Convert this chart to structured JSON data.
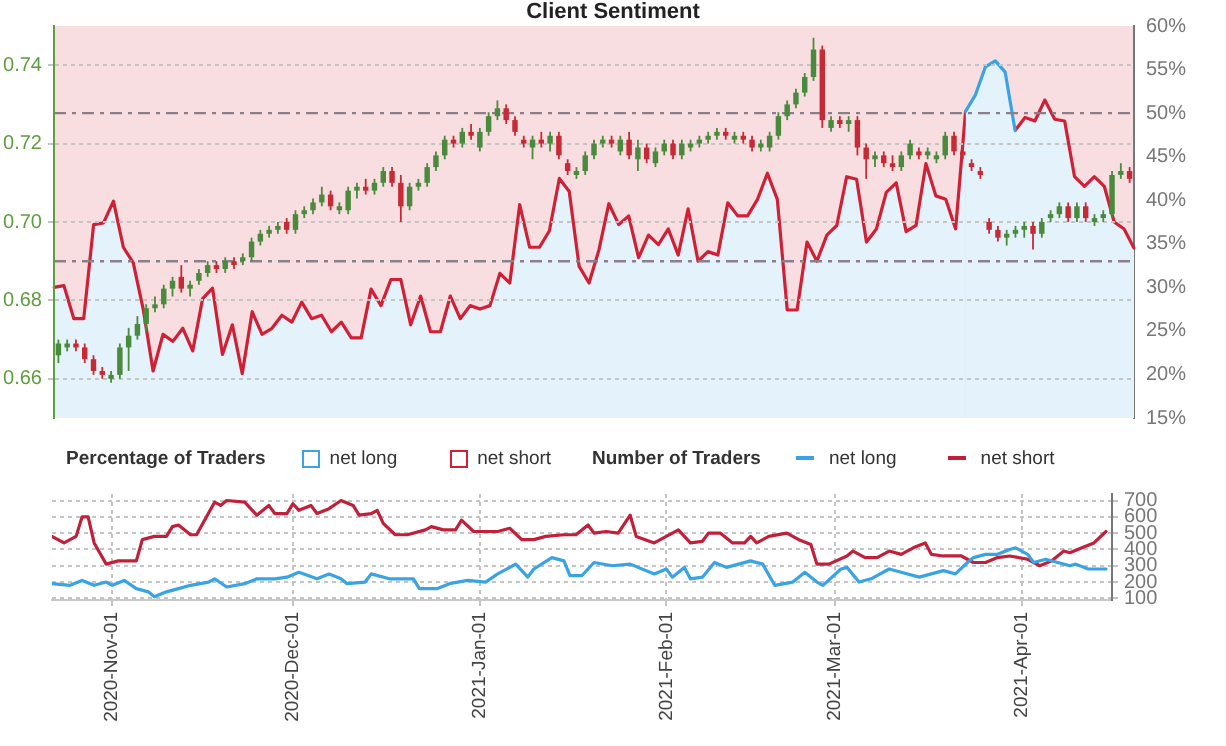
{
  "chart_data": [
    {
      "type": "candlestick",
      "title": "Client Sentiment",
      "grid": "y",
      "tick_labels": "y",
      "ylim": [
        0.65,
        0.75
      ],
      "yticks": [
        0.66,
        0.68,
        {
          "value": 0.7,
          "label": "0.70"
        },
        0.72,
        0.74
      ],
      "categories": [
        null,
        null,
        null,
        null,
        null,
        null,
        null,
        null,
        null,
        null,
        null,
        null,
        null,
        null,
        null,
        null,
        null,
        null,
        null,
        null,
        null,
        null,
        null,
        null,
        null,
        null,
        null,
        null,
        null,
        null,
        null,
        null,
        null,
        null,
        null,
        null,
        null,
        null,
        null,
        null,
        null,
        null,
        null,
        null,
        null,
        null,
        null,
        null,
        null,
        null,
        null,
        null,
        null,
        null,
        null,
        null,
        null,
        null,
        null,
        null,
        null,
        null,
        null,
        null,
        null,
        null,
        null,
        null,
        null,
        null,
        null,
        null,
        null,
        null,
        null,
        null,
        null,
        null,
        null,
        null,
        null,
        null,
        null,
        null,
        null,
        null,
        null,
        null,
        null,
        null,
        null,
        null,
        null,
        null,
        null,
        null,
        null,
        null,
        null,
        null,
        null,
        null,
        null,
        null,
        null,
        null,
        null,
        null,
        null,
        null,
        null,
        null,
        null,
        null,
        null,
        null,
        null,
        null,
        null,
        null,
        null,
        null,
        null
      ],
      "ohlc": [
        [
          0.666,
          0.67,
          0.664,
          0.669
        ],
        [
          0.668,
          0.67,
          0.667,
          0.669
        ],
        [
          0.669,
          0.67,
          0.667,
          0.668
        ],
        [
          0.668,
          0.669,
          0.664,
          0.665
        ],
        [
          0.665,
          0.666,
          0.661,
          0.662
        ],
        [
          0.662,
          0.663,
          0.66,
          0.661
        ],
        [
          0.66,
          0.662,
          0.659,
          0.661
        ],
        [
          0.661,
          0.669,
          0.66,
          0.668
        ],
        [
          0.668,
          0.673,
          0.662,
          0.671
        ],
        [
          0.671,
          0.676,
          0.67,
          0.674
        ],
        [
          0.674,
          0.679,
          0.672,
          0.678
        ],
        [
          0.678,
          0.681,
          0.677,
          0.679
        ],
        [
          0.679,
          0.684,
          0.678,
          0.683
        ],
        [
          0.683,
          0.686,
          0.681,
          0.685
        ],
        [
          0.686,
          0.689,
          0.682,
          0.683
        ],
        [
          0.683,
          0.685,
          0.681,
          0.684
        ],
        [
          0.685,
          0.688,
          0.684,
          0.687
        ],
        [
          0.687,
          0.69,
          0.686,
          0.689
        ],
        [
          0.689,
          0.69,
          0.687,
          0.688
        ],
        [
          0.688,
          0.691,
          0.687,
          0.69
        ],
        [
          0.69,
          0.691,
          0.688,
          0.689
        ],
        [
          0.69,
          0.692,
          0.689,
          0.691
        ],
        [
          0.691,
          0.696,
          0.69,
          0.695
        ],
        [
          0.695,
          0.698,
          0.694,
          0.697
        ],
        [
          0.697,
          0.699,
          0.696,
          0.698
        ],
        [
          0.698,
          0.7,
          0.697,
          0.699
        ],
        [
          0.7,
          0.701,
          0.697,
          0.698
        ],
        [
          0.698,
          0.703,
          0.697,
          0.702
        ],
        [
          0.702,
          0.704,
          0.701,
          0.703
        ],
        [
          0.703,
          0.706,
          0.702,
          0.705
        ],
        [
          0.705,
          0.709,
          0.704,
          0.707
        ],
        [
          0.707,
          0.708,
          0.703,
          0.704
        ],
        [
          0.703,
          0.705,
          0.702,
          0.704
        ],
        [
          0.703,
          0.709,
          0.702,
          0.708
        ],
        [
          0.708,
          0.71,
          0.706,
          0.709
        ],
        [
          0.709,
          0.711,
          0.707,
          0.708
        ],
        [
          0.708,
          0.711,
          0.707,
          0.71
        ],
        [
          0.71,
          0.714,
          0.709,
          0.713
        ],
        [
          0.713,
          0.714,
          0.709,
          0.71
        ],
        [
          0.71,
          0.712,
          0.7,
          0.704
        ],
        [
          0.704,
          0.71,
          0.703,
          0.709
        ],
        [
          0.709,
          0.711,
          0.708,
          0.71
        ],
        [
          0.71,
          0.715,
          0.709,
          0.714
        ],
        [
          0.714,
          0.718,
          0.713,
          0.717
        ],
        [
          0.717,
          0.722,
          0.716,
          0.721
        ],
        [
          0.721,
          0.722,
          0.719,
          0.72
        ],
        [
          0.72,
          0.724,
          0.719,
          0.723
        ],
        [
          0.723,
          0.725,
          0.721,
          0.722
        ],
        [
          0.719,
          0.724,
          0.718,
          0.723
        ],
        [
          0.723,
          0.728,
          0.722,
          0.727
        ],
        [
          0.727,
          0.731,
          0.726,
          0.729
        ],
        [
          0.729,
          0.73,
          0.725,
          0.726
        ],
        [
          0.726,
          0.727,
          0.722,
          0.723
        ],
        [
          0.721,
          0.722,
          0.719,
          0.72
        ],
        [
          0.719,
          0.722,
          0.716,
          0.721
        ],
        [
          0.721,
          0.723,
          0.719,
          0.72
        ],
        [
          0.72,
          0.723,
          0.718,
          0.722
        ],
        [
          0.722,
          0.723,
          0.716,
          0.717
        ],
        [
          0.715,
          0.716,
          0.712,
          0.713
        ],
        [
          0.712,
          0.714,
          0.711,
          0.713
        ],
        [
          0.713,
          0.718,
          0.712,
          0.717
        ],
        [
          0.717,
          0.721,
          0.716,
          0.72
        ],
        [
          0.72,
          0.722,
          0.719,
          0.721
        ],
        [
          0.721,
          0.722,
          0.719,
          0.72
        ],
        [
          0.718,
          0.722,
          0.717,
          0.721
        ],
        [
          0.721,
          0.723,
          0.716,
          0.717
        ],
        [
          0.716,
          0.721,
          0.713,
          0.719
        ],
        [
          0.719,
          0.72,
          0.715,
          0.716
        ],
        [
          0.715,
          0.719,
          0.714,
          0.718
        ],
        [
          0.718,
          0.721,
          0.717,
          0.72
        ],
        [
          0.72,
          0.721,
          0.716,
          0.717
        ],
        [
          0.717,
          0.721,
          0.716,
          0.72
        ],
        [
          0.719,
          0.721,
          0.718,
          0.72
        ],
        [
          0.72,
          0.722,
          0.719,
          0.721
        ],
        [
          0.721,
          0.723,
          0.72,
          0.722
        ],
        [
          0.722,
          0.724,
          0.721,
          0.723
        ],
        [
          0.723,
          0.724,
          0.721,
          0.722
        ],
        [
          0.721,
          0.723,
          0.72,
          0.722
        ],
        [
          0.722,
          0.723,
          0.72,
          0.721
        ],
        [
          0.721,
          0.722,
          0.718,
          0.719
        ],
        [
          0.719,
          0.721,
          0.718,
          0.72
        ],
        [
          0.719,
          0.723,
          0.718,
          0.722
        ],
        [
          0.722,
          0.728,
          0.721,
          0.727
        ],
        [
          0.727,
          0.731,
          0.726,
          0.73
        ],
        [
          0.73,
          0.734,
          0.729,
          0.733
        ],
        [
          0.733,
          0.738,
          0.732,
          0.737
        ],
        [
          0.737,
          0.747,
          0.736,
          0.744
        ],
        [
          0.744,
          0.745,
          0.724,
          0.726
        ],
        [
          0.724,
          0.727,
          0.723,
          0.726
        ],
        [
          0.726,
          0.727,
          0.724,
          0.725
        ],
        [
          0.725,
          0.727,
          0.723,
          0.726
        ],
        [
          0.726,
          0.727,
          0.717,
          0.719
        ],
        [
          0.719,
          0.72,
          0.711,
          0.716
        ],
        [
          0.716,
          0.718,
          0.714,
          0.717
        ],
        [
          0.717,
          0.718,
          0.714,
          0.715
        ],
        [
          0.715,
          0.717,
          0.713,
          0.714
        ],
        [
          0.714,
          0.718,
          0.713,
          0.717
        ],
        [
          0.717,
          0.721,
          0.716,
          0.72
        ],
        [
          0.718,
          0.719,
          0.716,
          0.717
        ],
        [
          0.717,
          0.719,
          0.716,
          0.718
        ],
        [
          0.716,
          0.718,
          0.715,
          0.717
        ],
        [
          0.717,
          0.723,
          0.716,
          0.722
        ],
        [
          0.722,
          0.723,
          0.717,
          0.718
        ],
        [
          0.718,
          0.719,
          0.716,
          0.717
        ],
        [
          0.715,
          0.716,
          0.713,
          0.714
        ],
        [
          0.713,
          0.714,
          0.711,
          0.712
        ],
        [
          0.7,
          0.701,
          0.697,
          0.698
        ],
        [
          0.698,
          0.699,
          0.695,
          0.696
        ],
        [
          0.696,
          0.698,
          0.694,
          0.697
        ],
        [
          0.697,
          0.699,
          0.696,
          0.698
        ],
        [
          0.698,
          0.7,
          0.696,
          0.699
        ],
        [
          0.699,
          0.7,
          0.693,
          0.697
        ],
        [
          0.697,
          0.701,
          0.696,
          0.7
        ],
        [
          0.701,
          0.703,
          0.7,
          0.702
        ],
        [
          0.702,
          0.705,
          0.701,
          0.704
        ],
        [
          0.704,
          0.705,
          0.7,
          0.701
        ],
        [
          0.701,
          0.705,
          0.7,
          0.704
        ],
        [
          0.704,
          0.705,
          0.7,
          0.701
        ],
        [
          0.7,
          0.702,
          0.699,
          0.701
        ],
        [
          0.701,
          0.703,
          0.7,
          0.702
        ],
        [
          0.702,
          0.713,
          0.701,
          0.712
        ],
        [
          0.712,
          0.715,
          0.711,
          0.713
        ],
        [
          0.713,
          0.714,
          0.71,
          0.711
        ]
      ],
      "colors": [
        "#4a8a3c",
        "#4a8a3c",
        "#c62a35",
        "#c62a35",
        "#c62a35",
        "#c62a35",
        "#4a8a3c",
        "#4a8a3c",
        "#4a8a3c",
        "#4a8a3c",
        "#4a8a3c",
        "#4a8a3c",
        "#4a8a3c",
        "#4a8a3c",
        "#c62a35",
        "#4a8a3c",
        "#4a8a3c",
        "#4a8a3c",
        "#c62a35",
        "#4a8a3c",
        "#c62a35",
        "#4a8a3c",
        "#4a8a3c",
        "#4a8a3c",
        "#4a8a3c",
        "#4a8a3c",
        "#c62a35",
        "#4a8a3c",
        "#4a8a3c",
        "#4a8a3c",
        "#4a8a3c",
        "#c62a35",
        "#4a8a3c",
        "#4a8a3c",
        "#4a8a3c",
        "#c62a35",
        "#4a8a3c",
        "#4a8a3c",
        "#c62a35",
        "#c62a35",
        "#4a8a3c",
        "#4a8a3c",
        "#4a8a3c",
        "#4a8a3c",
        "#4a8a3c",
        "#c62a35",
        "#4a8a3c",
        "#c62a35",
        "#4a8a3c",
        "#4a8a3c",
        "#4a8a3c",
        "#c62a35",
        "#c62a35",
        "#c62a35",
        "#4a8a3c",
        "#c62a35",
        "#4a8a3c",
        "#c62a35",
        "#c62a35",
        "#4a8a3c",
        "#4a8a3c",
        "#4a8a3c",
        "#4a8a3c",
        "#c62a35",
        "#4a8a3c",
        "#c62a35",
        "#4a8a3c",
        "#c62a35",
        "#4a8a3c",
        "#4a8a3c",
        "#c62a35",
        "#4a8a3c",
        "#4a8a3c",
        "#4a8a3c",
        "#4a8a3c",
        "#4a8a3c",
        "#c62a35",
        "#4a8a3c",
        "#c62a35",
        "#c62a35",
        "#4a8a3c",
        "#4a8a3c",
        "#4a8a3c",
        "#4a8a3c",
        "#4a8a3c",
        "#4a8a3c",
        "#4a8a3c",
        "#c62a35",
        "#4a8a3c",
        "#c62a35",
        "#4a8a3c",
        "#c62a35",
        "#c62a35",
        "#4a8a3c",
        "#c62a35",
        "#c62a35",
        "#4a8a3c",
        "#4a8a3c",
        "#c62a35",
        "#4a8a3c",
        "#4a8a3c",
        "#4a8a3c",
        "#c62a35",
        "#c62a35",
        "#c62a35",
        "#c62a35",
        "#c62a35",
        "#c62a35",
        "#4a8a3c",
        "#4a8a3c",
        "#4a8a3c",
        "#c62a35",
        "#4a8a3c",
        "#4a8a3c",
        "#4a8a3c",
        "#c62a35",
        "#4a8a3c",
        "#c62a35",
        "#4a8a3c",
        "#4a8a3c",
        "#4a8a3c",
        "#4a8a3c",
        "#c62a35"
      ]
    },
    {
      "type": "area",
      "legend_title": "Percentage of Traders",
      "legend": "bottom",
      "tick_labels": "y",
      "categories": [
        null,
        null,
        null,
        null,
        null,
        null,
        null,
        null,
        null,
        null,
        null,
        null,
        null,
        null,
        null,
        null,
        null,
        null,
        null,
        null,
        null,
        null,
        null,
        null,
        null,
        null,
        null,
        null,
        null,
        null,
        null,
        null,
        null,
        null,
        null,
        null,
        null,
        null,
        null,
        null,
        null,
        null,
        null,
        null,
        null,
        null,
        null,
        null,
        null,
        null,
        null,
        null,
        null,
        null,
        null,
        null,
        null,
        null,
        null,
        null,
        null,
        null,
        null,
        null,
        null,
        null,
        null,
        null,
        null,
        null,
        null,
        null,
        null,
        null,
        null,
        null,
        null,
        null,
        null,
        null,
        null,
        null,
        null,
        null,
        null,
        null,
        null,
        null,
        null,
        null,
        null,
        null,
        null,
        null,
        null,
        null,
        null,
        null,
        null,
        null,
        null,
        null,
        null,
        null,
        null,
        null,
        null,
        null,
        null,
        null
      ],
      "ylim": [
        15,
        60
      ],
      "yticks": [
        {
          "value": 15,
          "label": "15%"
        },
        {
          "value": 20,
          "label": "20%"
        },
        {
          "value": 25,
          "label": "25%"
        },
        {
          "value": 30,
          "label": "30%"
        },
        {
          "value": 35,
          "label": "35%"
        },
        {
          "value": 40,
          "label": "40%"
        },
        {
          "value": 45,
          "label": "45%"
        },
        {
          "value": 50,
          "label": "50%"
        },
        {
          "value": 55,
          "label": "55%"
        },
        {
          "value": 60,
          "label": "60%"
        }
      ],
      "ref_lines": [
        {
          "axis": "y",
          "value": 50,
          "color": "#8c7f8a",
          "line_style": "dashed"
        },
        {
          "axis": "y",
          "value": 33,
          "color": "#8c7f8a",
          "line_style": "dashed"
        }
      ],
      "series": [
        {
          "name": "net long",
          "color": "#3aa3e3",
          "values": [
            null,
            null,
            null,
            null,
            null,
            null,
            null,
            null,
            null,
            null,
            null,
            null,
            null,
            null,
            null,
            null,
            null,
            null,
            null,
            null,
            null,
            null,
            null,
            null,
            null,
            null,
            null,
            null,
            null,
            null,
            null,
            null,
            null,
            null,
            null,
            null,
            null,
            null,
            null,
            null,
            null,
            null,
            null,
            null,
            null,
            null,
            null,
            null,
            null,
            null,
            null,
            null,
            null,
            null,
            null,
            null,
            null,
            null,
            null,
            null,
            null,
            null,
            null,
            null,
            null,
            null,
            null,
            null,
            null,
            null,
            null,
            null,
            null,
            null,
            null,
            null,
            null,
            null,
            null,
            null,
            null,
            null,
            null,
            null,
            null,
            null,
            null,
            null,
            null,
            null,
            null,
            null,
            50.2,
            52.1,
            55.3,
            56.0,
            54.7,
            48.0,
            null,
            null,
            null,
            null,
            null,
            null,
            null,
            null,
            null,
            null,
            null,
            null
          ]
        },
        {
          "name": "net short",
          "color": "#cf2035",
          "values": [
            30.0,
            30.2,
            26.4,
            26.4,
            37.2,
            37.4,
            39.9,
            34.6,
            32.8,
            27.5,
            20.4,
            24.6,
            23.8,
            25.3,
            22.7,
            28.7,
            29.9,
            22.3,
            25.7,
            20.1,
            27.2,
            24.6,
            25.3,
            26.8,
            26.0,
            28.3,
            26.4,
            26.8,
            24.9,
            26.0,
            24.2,
            24.2,
            29.8,
            27.9,
            30.9,
            30.9,
            25.7,
            29.0,
            24.9,
            24.9,
            29.0,
            26.4,
            27.9,
            27.5,
            27.9,
            31.6,
            30.5,
            39.5,
            34.6,
            34.6,
            36.5,
            42.5,
            41.0,
            32.4,
            30.5,
            34.3,
            39.6,
            37.2,
            38.2,
            33.4,
            36.0,
            34.9,
            36.7,
            33.7,
            39.0,
            33.0,
            34.1,
            33.7,
            39.7,
            38.2,
            38.2,
            40.1,
            43.1,
            40.1,
            27.4,
            27.4,
            35.2,
            33.0,
            36.0,
            37.1,
            42.7,
            42.4,
            35.2,
            36.7,
            40.9,
            42.0,
            36.4,
            37.1,
            44.2,
            40.5,
            40.1,
            36.7,
            50.2,
            null,
            null,
            null,
            null,
            null,
            null,
            null,
            null,
            null,
            null,
            null,
            null,
            null,
            null,
            null,
            null,
            null
          ]
        },
        {
          "color": "#cf2035",
          "values": [
            null,
            null,
            null,
            null,
            null,
            null,
            null,
            null,
            null,
            null,
            null,
            null,
            null,
            null,
            null,
            null,
            null,
            null,
            null,
            null,
            null,
            null,
            null,
            null,
            null,
            null,
            null,
            null,
            null,
            null,
            null,
            null,
            null,
            null,
            null,
            null,
            null,
            null,
            null,
            null,
            null,
            null,
            null,
            null,
            null,
            null,
            null,
            null,
            null,
            null,
            null,
            null,
            null,
            null,
            null,
            null,
            null,
            null,
            null,
            null,
            null,
            null,
            null,
            null,
            null,
            null,
            null,
            null,
            null,
            null,
            null,
            null,
            null,
            null,
            null,
            null,
            null,
            null,
            null,
            null,
            null,
            null,
            null,
            null,
            null,
            null,
            null,
            null,
            null,
            null,
            null,
            null,
            null,
            null,
            null,
            null,
            null,
            48.0,
            49.5,
            49.1,
            51.5,
            49.3,
            49.1,
            42.7,
            41.6,
            42.7,
            41.6,
            37.5,
            36.7,
            34.5
          ]
        }
      ]
    },
    {
      "type": "line",
      "legend_title": "Number of Traders",
      "legend": "top",
      "grid": true,
      "xlim": [
        "2020-10-22",
        "2021-04-16"
      ],
      "xticks": [
        {
          "value": "2020-11-01",
          "label": "2020-Nov-01"
        },
        {
          "value": "2020-12-01",
          "label": "2020-Dec-01"
        },
        {
          "value": "2021-01-01",
          "label": "2021-Jan-01"
        },
        {
          "value": "2021-02-01",
          "label": "2021-Feb-01"
        },
        {
          "value": "2021-03-01",
          "label": "2021-Mar-01"
        },
        {
          "value": "2021-04-01",
          "label": "2021-Apr-01"
        }
      ],
      "y2lim": [
        90,
        740
      ],
      "y2ticks": [
        100,
        200,
        300,
        400,
        500,
        600,
        700
      ],
      "series": [
        {
          "name": "net long",
          "axis": "y2",
          "color": "#3aa3e3",
          "x": [
            "2020-10-22",
            "2020-10-25",
            "2020-10-27",
            "2020-10-29",
            "2020-10-31",
            "2020-11-01",
            "2020-11-03",
            "2020-11-05",
            "2020-11-07",
            "2020-11-08",
            "2020-11-10",
            "2020-11-12",
            "2020-11-14",
            "2020-11-17",
            "2020-11-18",
            "2020-11-20",
            "2020-11-23",
            "2020-11-25",
            "2020-11-28",
            "2020-11-30",
            "2020-12-02",
            "2020-12-05",
            "2020-12-07",
            "2020-12-09",
            "2020-12-10",
            "2020-12-13",
            "2020-12-14",
            "2020-12-17",
            "2020-12-21",
            "2020-12-22",
            "2020-12-25",
            "2020-12-27",
            "2020-12-30",
            "2021-01-02",
            "2021-01-04",
            "2021-01-07",
            "2021-01-09",
            "2021-01-10",
            "2021-01-13",
            "2021-01-15",
            "2021-01-16",
            "2021-01-18",
            "2021-01-20",
            "2021-01-23",
            "2021-01-26",
            "2021-01-30",
            "2021-02-01",
            "2021-02-02",
            "2021-02-04",
            "2021-02-05",
            "2021-02-07",
            "2021-02-09",
            "2021-02-11",
            "2021-02-13",
            "2021-02-15",
            "2021-02-17",
            "2021-02-19",
            "2021-02-22",
            "2021-02-24",
            "2021-02-26",
            "2021-02-27",
            "2021-03-02",
            "2021-03-03",
            "2021-03-05",
            "2021-03-07",
            "2021-03-10",
            "2021-03-12",
            "2021-03-15",
            "2021-03-17",
            "2021-03-19",
            "2021-03-21",
            "2021-03-23",
            "2021-03-24",
            "2021-03-26",
            "2021-03-28",
            "2021-03-30",
            "2021-03-31",
            "2021-04-02",
            "2021-04-03",
            "2021-04-05",
            "2021-04-07",
            "2021-04-09",
            "2021-04-10",
            "2021-04-12",
            "2021-04-15"
          ],
          "values": [
            190,
            180,
            210,
            180,
            200,
            180,
            210,
            160,
            140,
            110,
            140,
            160,
            180,
            200,
            220,
            170,
            190,
            220,
            220,
            230,
            260,
            220,
            250,
            220,
            190,
            200,
            250,
            220,
            220,
            160,
            160,
            190,
            210,
            200,
            250,
            310,
            230,
            280,
            350,
            330,
            240,
            240,
            320,
            300,
            310,
            250,
            280,
            230,
            290,
            220,
            230,
            320,
            290,
            310,
            330,
            310,
            180,
            200,
            260,
            200,
            180,
            280,
            290,
            200,
            220,
            280,
            260,
            230,
            250,
            270,
            250,
            320,
            350,
            370,
            370,
            400,
            410,
            370,
            320,
            340,
            320,
            300,
            310,
            280,
            280
          ]
        },
        {
          "name": "net short",
          "axis": "y2",
          "color": "#c0203a",
          "x": [
            "2020-10-22",
            "2020-10-24",
            "2020-10-26",
            "2020-10-27",
            "2020-10-28",
            "2020-10-29",
            "2020-10-31",
            "2020-11-02",
            "2020-11-05",
            "2020-11-06",
            "2020-11-08",
            "2020-11-10",
            "2020-11-11",
            "2020-11-12",
            "2020-11-14",
            "2020-11-15",
            "2020-11-18",
            "2020-11-19",
            "2020-11-20",
            "2020-11-23",
            "2020-11-25",
            "2020-11-27",
            "2020-11-28",
            "2020-11-30",
            "2020-12-01",
            "2020-12-02",
            "2020-12-04",
            "2020-12-05",
            "2020-12-07",
            "2020-12-09",
            "2020-12-11",
            "2020-12-12",
            "2020-12-14",
            "2020-12-15",
            "2020-12-16",
            "2020-12-18",
            "2020-12-20",
            "2020-12-23",
            "2020-12-24",
            "2020-12-26",
            "2020-12-28",
            "2020-12-29",
            "2020-12-31",
            "2021-01-04",
            "2021-01-06",
            "2021-01-08",
            "2021-01-10",
            "2021-01-12",
            "2021-01-15",
            "2021-01-17",
            "2021-01-19",
            "2021-01-20",
            "2021-01-22",
            "2021-01-24",
            "2021-01-26",
            "2021-01-27",
            "2021-01-30",
            "2021-02-01",
            "2021-02-03",
            "2021-02-05",
            "2021-02-07",
            "2021-02-08",
            "2021-02-10",
            "2021-02-12",
            "2021-02-14",
            "2021-02-15",
            "2021-02-16",
            "2021-02-18",
            "2021-02-21",
            "2021-02-23",
            "2021-02-25",
            "2021-02-26",
            "2021-02-28",
            "2021-03-03",
            "2021-03-04",
            "2021-03-06",
            "2021-03-08",
            "2021-03-10",
            "2021-03-12",
            "2021-03-14",
            "2021-03-16",
            "2021-03-17",
            "2021-03-19",
            "2021-03-22",
            "2021-03-24",
            "2021-03-26",
            "2021-03-28",
            "2021-03-30",
            "2021-04-02",
            "2021-04-04",
            "2021-04-06",
            "2021-04-08",
            "2021-04-09",
            "2021-04-11",
            "2021-04-13",
            "2021-04-15"
          ],
          "values": [
            480,
            440,
            480,
            600,
            600,
            440,
            310,
            330,
            330,
            460,
            480,
            480,
            540,
            550,
            490,
            490,
            690,
            670,
            700,
            690,
            610,
            670,
            620,
            620,
            680,
            640,
            670,
            620,
            650,
            700,
            670,
            610,
            620,
            640,
            560,
            490,
            490,
            520,
            540,
            520,
            520,
            580,
            510,
            510,
            530,
            460,
            460,
            480,
            490,
            490,
            550,
            500,
            510,
            500,
            610,
            480,
            440,
            480,
            520,
            440,
            450,
            500,
            500,
            440,
            440,
            480,
            440,
            480,
            500,
            460,
            430,
            310,
            310,
            360,
            390,
            350,
            350,
            390,
            370,
            410,
            440,
            370,
            360,
            360,
            320,
            320,
            350,
            360,
            340,
            300,
            330,
            390,
            380,
            410,
            440,
            510
          ]
        }
      ]
    }
  ]
}
